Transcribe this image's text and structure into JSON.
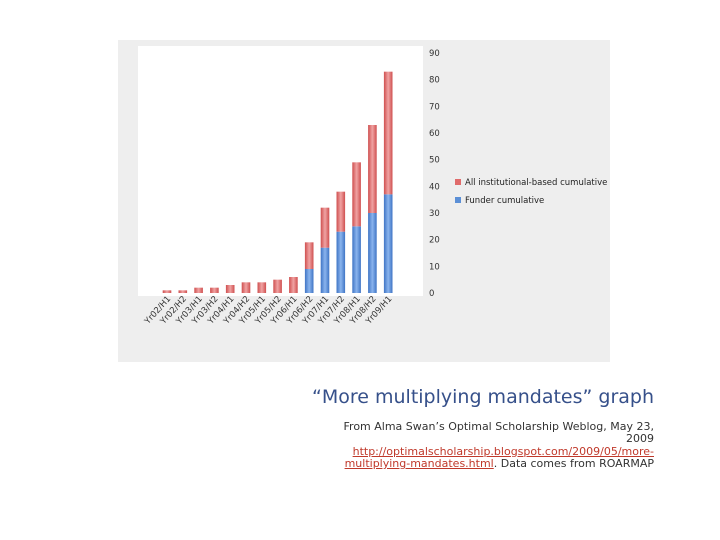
{
  "chart_data": {
    "type": "bar",
    "stacked": true,
    "categories": [
      "Yr02/H1",
      "Yr02/H2",
      "Yr03/H1",
      "Yr03/H2",
      "Yr04/H1",
      "Yr04/H2",
      "Yr05/H1",
      "Yr05/H2",
      "Yr06/H1",
      "Yr06/H2",
      "Yr07/H1",
      "Yr07/H2",
      "Yr08/H1",
      "Yr08/H2",
      "Yr09/H1"
    ],
    "series": [
      {
        "name": "Funder cumulative",
        "color": "#5b8fd6",
        "values": [
          0,
          0,
          0,
          0,
          0,
          0,
          0,
          0,
          0,
          9,
          17,
          23,
          25,
          30,
          37
        ]
      },
      {
        "name": "All institutional-based cumulative",
        "color": "#e06b6b",
        "values": [
          1,
          1,
          2,
          2,
          3,
          4,
          4,
          5,
          6,
          10,
          15,
          15,
          24,
          33,
          46
        ]
      }
    ],
    "ylim": [
      0,
      90
    ],
    "yticks": [
      0,
      10,
      20,
      30,
      40,
      50,
      60,
      70,
      80,
      90
    ],
    "y_axis_position": "right",
    "legend_position": "right",
    "grid": false
  },
  "slide": {
    "title": "“More multiplying mandates” graph",
    "credit_prefix": "From Alma Swan’s Optimal Scholarship Weblog, May 23, 2009",
    "credit_link": "http://optimalscholarship.blogspot.com/2009/05/more-multiplying-mandates.html",
    "credit_suffix": ". Data comes from ROARMAP"
  }
}
